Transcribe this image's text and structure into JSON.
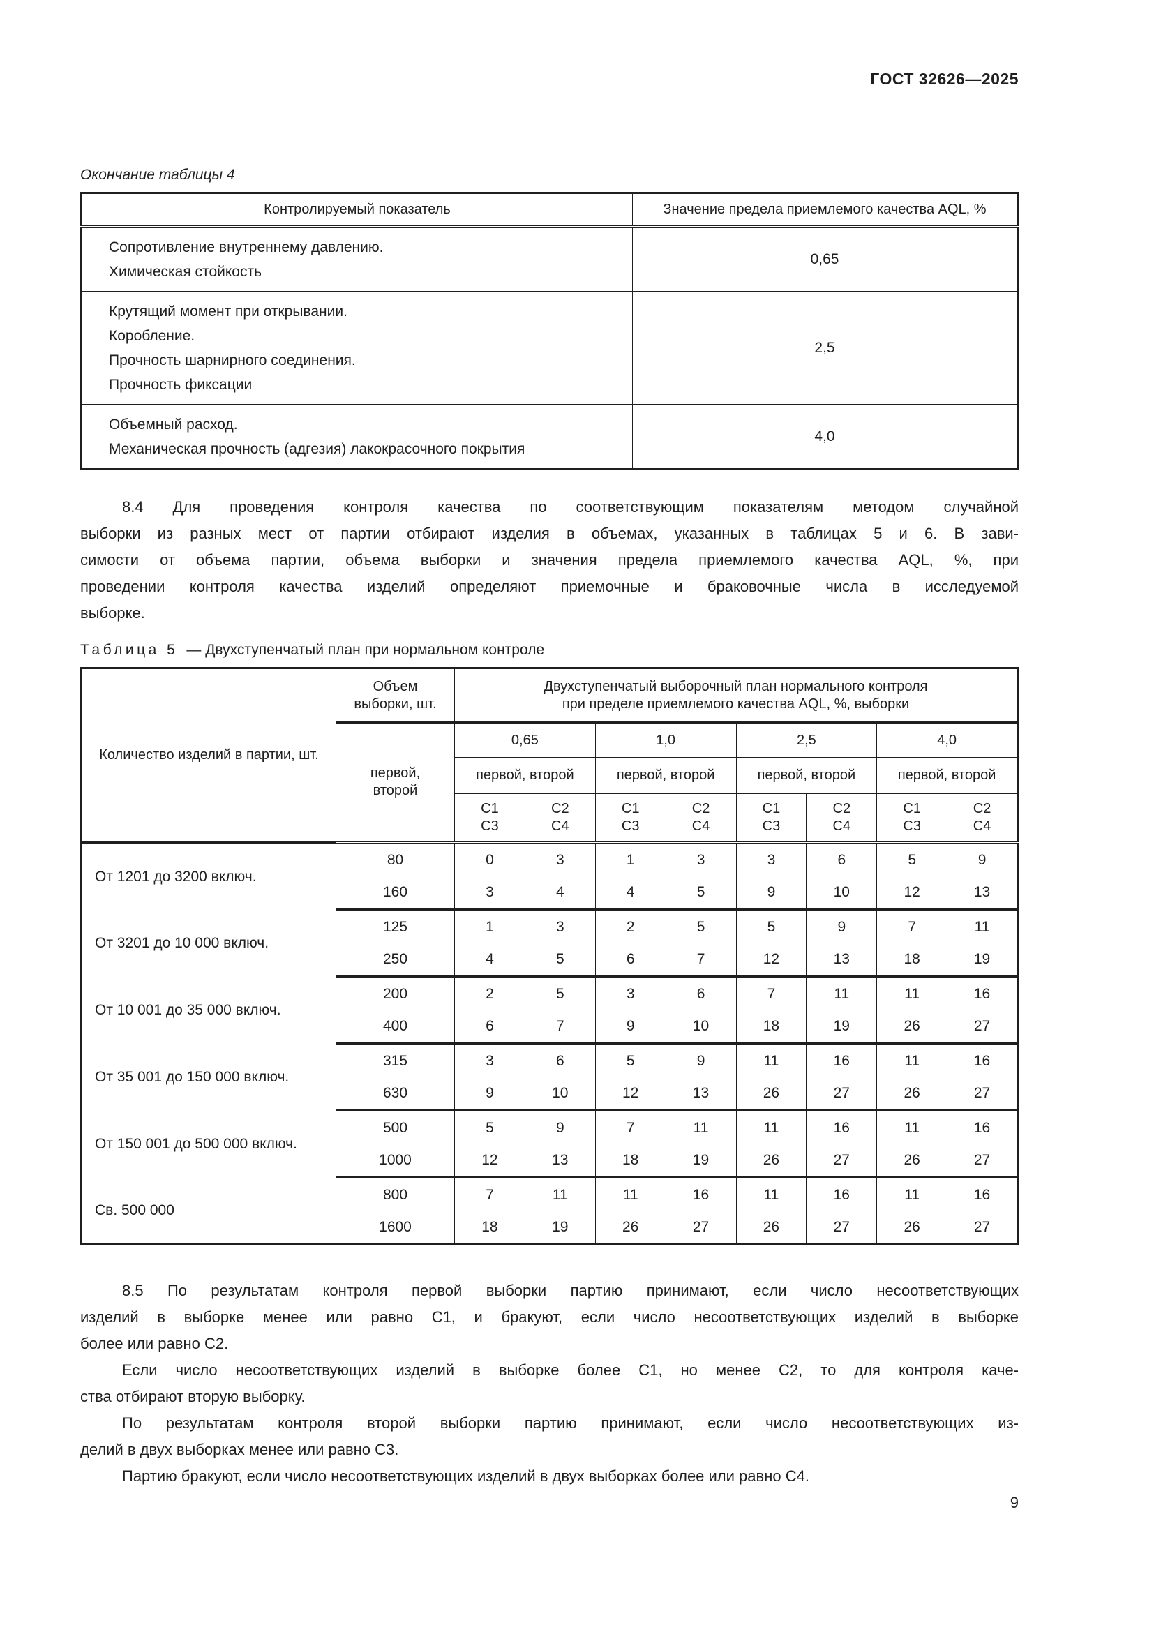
{
  "page": {
    "header": "ГОСТ 32626—2025",
    "page_number": "9"
  },
  "table4": {
    "continuation_caption": "Окончание таблицы 4",
    "columns": [
      "Контролируемый показатель",
      "Значение предела приемлемого качества AQL, %"
    ],
    "rows": [
      {
        "indicator_lines": [
          "Сопротивление внутреннему давлению.",
          "Химическая стойкость"
        ],
        "aql": "0,65"
      },
      {
        "indicator_lines": [
          "Крутящий момент при открывании.",
          "Коробление.",
          "Прочность шарнирного соединения.",
          "Прочность фиксации"
        ],
        "aql": "2,5"
      },
      {
        "indicator_lines": [
          "Объемный расход.",
          "Механическая прочность (адгезия) лакокрасочного покрытия"
        ],
        "aql": "4,0"
      }
    ]
  },
  "paragraph_8_4": {
    "lines": [
      "8.4 Для проведения контроля качества по соответствующим показателям методом случайной",
      "выборки из разных мест от партии отбирают изделия в объемах, указанных в таблицах 5 и 6. В зави-",
      "симости от объема партии, объема выборки и значения предела приемлемого качества AQL, %, при",
      "проведении контроля качества изделий определяют приемочные и браковочные числа в исследуемой",
      "выборке."
    ]
  },
  "table5": {
    "caption_label": "Таблица 5",
    "caption_rest": "— Двухступенчатый план при нормальном контроле",
    "header": {
      "col_batch": "Количество изделий в партии, шт.",
      "size_lines": [
        "Объем",
        "выборки, шт."
      ],
      "plan_lines": [
        "Двухступенчатый выборочный план нормального контроля",
        "при пределе приемлемого качества AQL, %, выборки"
      ],
      "order_lines": [
        "первой,",
        "второй"
      ],
      "aql_levels": [
        "0,65",
        "1,0",
        "2,5",
        "4,0"
      ],
      "pair_label": "первой, второй",
      "c13": [
        "С1",
        "С3"
      ],
      "c24": [
        "С2",
        "С4"
      ]
    },
    "groups": [
      {
        "batch": "От 1201 до 3200 включ.",
        "rows": [
          {
            "n": "80",
            "values": [
              "0",
              "3",
              "1",
              "3",
              "3",
              "6",
              "5",
              "9"
            ]
          },
          {
            "n": "160",
            "values": [
              "3",
              "4",
              "4",
              "5",
              "9",
              "10",
              "12",
              "13"
            ]
          }
        ]
      },
      {
        "batch": "От 3201 до 10 000 включ.",
        "rows": [
          {
            "n": "125",
            "values": [
              "1",
              "3",
              "2",
              "5",
              "5",
              "9",
              "7",
              "11"
            ]
          },
          {
            "n": "250",
            "values": [
              "4",
              "5",
              "6",
              "7",
              "12",
              "13",
              "18",
              "19"
            ]
          }
        ]
      },
      {
        "batch": "От 10 001 до 35 000 включ.",
        "rows": [
          {
            "n": "200",
            "values": [
              "2",
              "5",
              "3",
              "6",
              "7",
              "11",
              "11",
              "16"
            ]
          },
          {
            "n": "400",
            "values": [
              "6",
              "7",
              "9",
              "10",
              "18",
              "19",
              "26",
              "27"
            ]
          }
        ]
      },
      {
        "batch": "От 35 001 до 150 000 включ.",
        "rows": [
          {
            "n": "315",
            "values": [
              "3",
              "6",
              "5",
              "9",
              "11",
              "16",
              "11",
              "16"
            ]
          },
          {
            "n": "630",
            "values": [
              "9",
              "10",
              "12",
              "13",
              "26",
              "27",
              "26",
              "27"
            ]
          }
        ]
      },
      {
        "batch": "От 150 001 до 500 000 включ.",
        "rows": [
          {
            "n": "500",
            "values": [
              "5",
              "9",
              "7",
              "11",
              "11",
              "16",
              "11",
              "16"
            ]
          },
          {
            "n": "1000",
            "values": [
              "12",
              "13",
              "18",
              "19",
              "26",
              "27",
              "26",
              "27"
            ]
          }
        ]
      },
      {
        "batch": "Св. 500 000",
        "rows": [
          {
            "n": "800",
            "values": [
              "7",
              "11",
              "11",
              "16",
              "11",
              "16",
              "11",
              "16"
            ]
          },
          {
            "n": "1600",
            "values": [
              "18",
              "19",
              "26",
              "27",
              "26",
              "27",
              "26",
              "27"
            ]
          }
        ]
      }
    ]
  },
  "paragraphs_8_5": [
    {
      "lines": [
        "8.5 По результатам контроля первой выборки партию принимают, если число несоответствующих",
        "изделий в выборке менее или равно С1, и бракуют, если число несоответствующих изделий в выборке",
        "более или равно С2."
      ]
    },
    {
      "lines": [
        "Если число несоответствующих изделий в выборке более С1, но менее С2, то для контроля каче-",
        "ства отбирают вторую выборку."
      ]
    },
    {
      "lines": [
        "По результатам контроля второй выборки партию принимают, если число несоответствующих из-",
        "делий в двух выборках менее или равно С3."
      ]
    },
    {
      "lines": [
        "Партию бракуют, если число несоответствующих изделий в двух выборках более или равно С4."
      ]
    }
  ]
}
